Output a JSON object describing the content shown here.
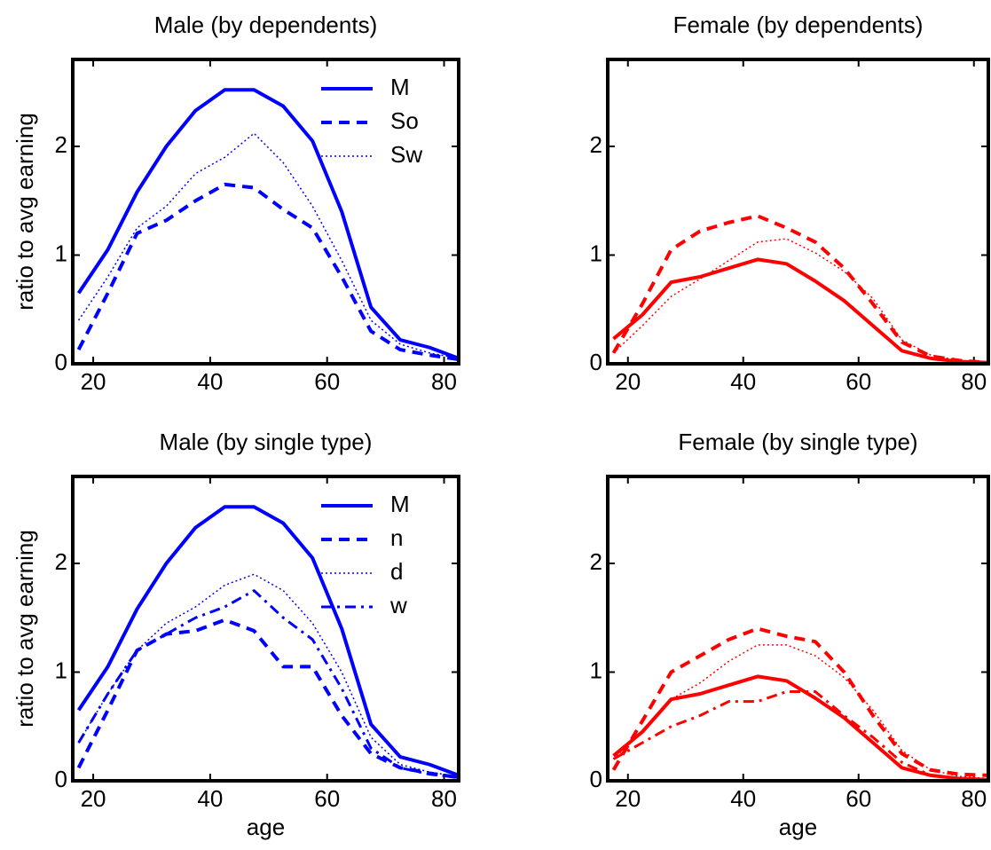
{
  "chart_data": [
    {
      "type": "line",
      "title": "Male (by dependents)",
      "ylabel": "ratio to avg earning",
      "x": [
        17.5,
        22.5,
        27.5,
        32.5,
        37.5,
        42.5,
        47.5,
        52.5,
        57.5,
        62.5,
        67.5,
        72.5,
        77.5,
        82.5
      ],
      "xlim": [
        16.5,
        82.5
      ],
      "xticks": [
        20,
        40,
        60,
        80
      ],
      "ylim": [
        0,
        2.8
      ],
      "yticks": [
        0,
        1,
        2
      ],
      "legend": "upper right",
      "series": [
        {
          "name": "M",
          "color": "#0000ff",
          "dash": "solid",
          "values": [
            0.65,
            1.05,
            1.58,
            2.0,
            2.33,
            2.52,
            2.52,
            2.37,
            2.05,
            1.4,
            0.52,
            0.22,
            0.15,
            0.05
          ]
        },
        {
          "name": "So",
          "color": "#0000ff",
          "dash": "dashed",
          "values": [
            0.13,
            0.65,
            1.2,
            1.32,
            1.5,
            1.65,
            1.62,
            1.42,
            1.25,
            0.8,
            0.3,
            0.13,
            0.08,
            0.04
          ]
        },
        {
          "name": "Sw",
          "color": "#0000ff",
          "dash": "dotted",
          "values": [
            0.4,
            0.8,
            1.25,
            1.45,
            1.75,
            1.9,
            2.12,
            1.85,
            1.45,
            0.95,
            0.4,
            0.18,
            0.1,
            0.05
          ]
        }
      ]
    },
    {
      "type": "line",
      "title": "Female (by dependents)",
      "x": [
        17.5,
        22.5,
        27.5,
        32.5,
        37.5,
        42.5,
        47.5,
        52.5,
        57.5,
        62.5,
        67.5,
        72.5,
        77.5,
        82.5
      ],
      "xlim": [
        16.5,
        82.5
      ],
      "xticks": [
        20,
        40,
        60,
        80
      ],
      "ylim": [
        0,
        2.8
      ],
      "yticks": [
        0,
        1,
        2
      ],
      "series": [
        {
          "color": "#ff0000",
          "dash": "solid",
          "values": [
            0.23,
            0.45,
            0.75,
            0.8,
            0.88,
            0.96,
            0.92,
            0.76,
            0.58,
            0.35,
            0.12,
            0.05,
            0.02,
            0.01
          ]
        },
        {
          "color": "#ff0000",
          "dash": "dashed",
          "values": [
            0.1,
            0.55,
            1.05,
            1.22,
            1.3,
            1.36,
            1.25,
            1.12,
            0.88,
            0.55,
            0.2,
            0.07,
            0.03,
            0.01
          ]
        },
        {
          "color": "#ff0000",
          "dash": "dotted",
          "values": [
            0.1,
            0.35,
            0.62,
            0.78,
            0.95,
            1.12,
            1.15,
            1.02,
            0.85,
            0.6,
            0.22,
            0.08,
            0.03,
            0.01
          ]
        }
      ]
    },
    {
      "type": "line",
      "title": "Male (by single type)",
      "ylabel": "ratio to avg earning",
      "xlabel": "age",
      "x": [
        17.5,
        22.5,
        27.5,
        32.5,
        37.5,
        42.5,
        47.5,
        52.5,
        57.5,
        62.5,
        67.5,
        72.5,
        77.5,
        82.5
      ],
      "xlim": [
        16.5,
        82.5
      ],
      "xticks": [
        20,
        40,
        60,
        80
      ],
      "ylim": [
        0,
        2.8
      ],
      "yticks": [
        0,
        1,
        2
      ],
      "legend": "upper right",
      "series": [
        {
          "name": "M",
          "color": "#0000ff",
          "dash": "solid",
          "values": [
            0.65,
            1.05,
            1.58,
            2.0,
            2.33,
            2.52,
            2.52,
            2.37,
            2.05,
            1.4,
            0.52,
            0.22,
            0.15,
            0.05
          ]
        },
        {
          "name": "n",
          "color": "#0000ff",
          "dash": "dashed",
          "values": [
            0.12,
            0.65,
            1.2,
            1.35,
            1.38,
            1.48,
            1.38,
            1.05,
            1.05,
            0.6,
            0.25,
            0.12,
            0.07,
            0.03
          ]
        },
        {
          "name": "d",
          "color": "#0000ff",
          "dash": "dotted",
          "values": [
            0.35,
            0.8,
            1.2,
            1.45,
            1.6,
            1.8,
            1.9,
            1.75,
            1.45,
            1.0,
            0.4,
            0.15,
            0.08,
            0.04
          ]
        },
        {
          "name": "w",
          "color": "#0000ff",
          "dash": "dashdot",
          "values": [
            0.35,
            0.8,
            1.2,
            1.35,
            1.5,
            1.6,
            1.75,
            1.5,
            1.3,
            0.85,
            0.3,
            0.12,
            0.06,
            0.03
          ]
        }
      ]
    },
    {
      "type": "line",
      "title": "Female (by single type)",
      "xlabel": "age",
      "x": [
        17.5,
        22.5,
        27.5,
        32.5,
        37.5,
        42.5,
        47.5,
        52.5,
        57.5,
        62.5,
        67.5,
        72.5,
        77.5,
        82.5
      ],
      "xlim": [
        16.5,
        82.5
      ],
      "xticks": [
        20,
        40,
        60,
        80
      ],
      "ylim": [
        0,
        2.8
      ],
      "yticks": [
        0,
        1,
        2
      ],
      "series": [
        {
          "color": "#ff0000",
          "dash": "solid",
          "values": [
            0.23,
            0.45,
            0.75,
            0.8,
            0.88,
            0.96,
            0.92,
            0.76,
            0.58,
            0.35,
            0.12,
            0.05,
            0.02,
            0.01
          ]
        },
        {
          "color": "#ff0000",
          "dash": "dashed",
          "values": [
            0.1,
            0.55,
            1.0,
            1.15,
            1.3,
            1.4,
            1.33,
            1.28,
            1.0,
            0.6,
            0.25,
            0.1,
            0.06,
            0.05
          ]
        },
        {
          "color": "#ff0000",
          "dash": "dotted",
          "values": [
            0.2,
            0.45,
            0.75,
            0.9,
            1.1,
            1.25,
            1.25,
            1.15,
            0.95,
            0.65,
            0.28,
            0.1,
            0.04,
            0.02
          ]
        },
        {
          "color": "#ff0000",
          "dash": "dashdot",
          "values": [
            0.2,
            0.35,
            0.5,
            0.6,
            0.73,
            0.73,
            0.82,
            0.82,
            0.6,
            0.4,
            0.17,
            0.05,
            0.02,
            0.01
          ]
        }
      ]
    }
  ]
}
